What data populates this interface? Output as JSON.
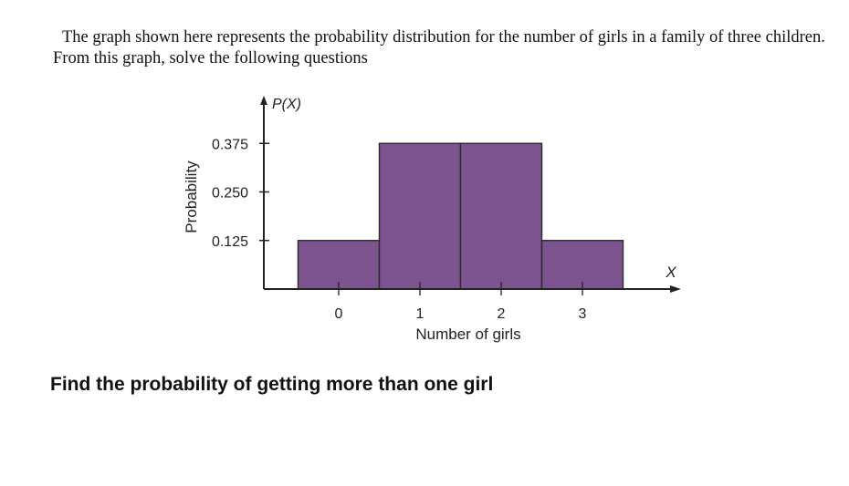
{
  "intro_text": "The graph shown here represents the probability distribution for the number of girls in a family of three children. From this graph, solve the following questions",
  "question_text": "Find the probability of getting more than one girl",
  "colors": {
    "bar_fill": "#7b548f",
    "bar_stroke": "#2a2a2a",
    "axis": "#222222"
  },
  "chart_data": {
    "type": "bar",
    "title": "",
    "categories": [
      "0",
      "1",
      "2",
      "3"
    ],
    "values": [
      0.125,
      0.375,
      0.375,
      0.125
    ],
    "xlabel": "Number of girls",
    "ylabel": "Probability",
    "y_axis_title": "P(X)",
    "x_axis_title": "X",
    "yticks": [
      0.125,
      0.25,
      0.375
    ],
    "ytick_labels": [
      "0.125",
      "0.250",
      "0.375"
    ],
    "ylim": [
      0,
      0.45
    ],
    "grid": false
  }
}
